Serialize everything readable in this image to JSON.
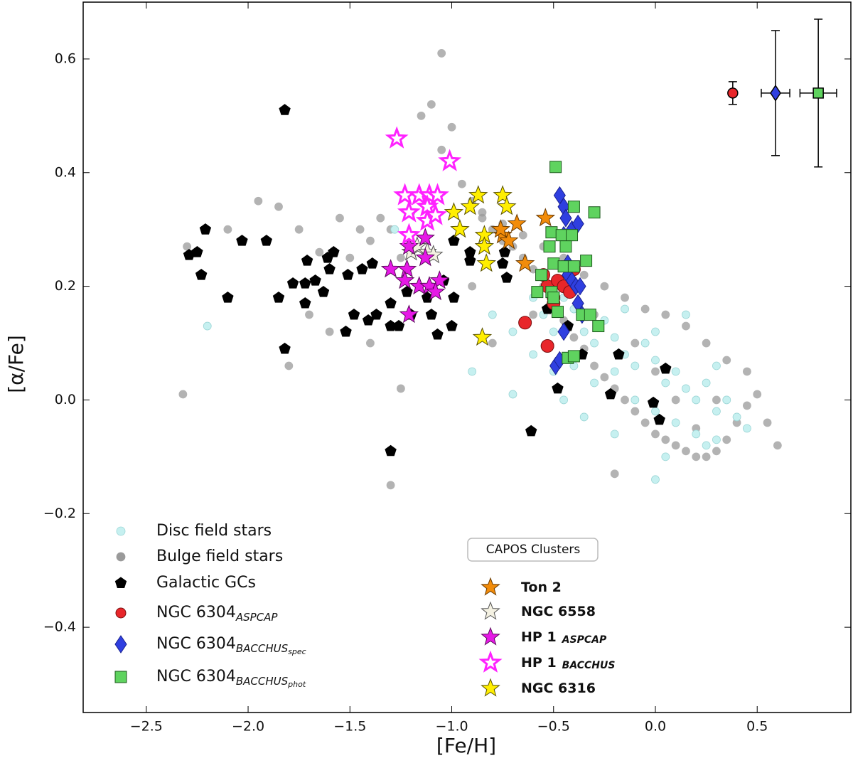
{
  "chart_data": {
    "type": "scatter",
    "xlabel": "[Fe/H]",
    "ylabel": "[α/Fe]",
    "xlim": [
      -2.81,
      0.96
    ],
    "ylim": [
      -0.55,
      0.7
    ],
    "xticks": [
      {
        "value": -2.5,
        "label": "−2.5"
      },
      {
        "value": -2,
        "label": "−2.0"
      },
      {
        "value": -1.5,
        "label": "−1.5"
      },
      {
        "value": -1,
        "label": "−1.0"
      },
      {
        "value": -0.5,
        "label": "−0.5"
      },
      {
        "value": 0,
        "label": "0.0"
      },
      0.5
    ],
    "yticks": [
      {
        "value": -0.4,
        "label": "−0.4"
      },
      {
        "value": -0.2,
        "label": "−0.2"
      },
      {
        "value": 0,
        "label": "0.0"
      },
      0.2,
      0.4,
      0.6
    ],
    "legend_title": "CAPOS Clusters",
    "series": [
      {
        "name": "Disc field stars",
        "marker": "circle",
        "color": "#c6f0f0",
        "edgecolor": "#9cd6d6",
        "legend": "left",
        "x": [
          -0.6,
          -0.55,
          -0.5,
          -0.45,
          -0.4,
          -0.35,
          -0.3,
          -0.25,
          -0.2,
          -0.15,
          -0.1,
          -0.05,
          0.0,
          0.05,
          0.1,
          0.15,
          0.2,
          0.25,
          0.3,
          0.35,
          0.4,
          0.45,
          -0.3,
          -0.2,
          -0.1,
          0.0,
          0.1,
          0.2,
          0.3,
          -0.4,
          -0.5,
          -0.6,
          -0.7,
          -0.8,
          -0.45,
          -0.35,
          0.05,
          0.0,
          -2.2,
          -1.28,
          -0.9,
          -0.7,
          0.15,
          0.0,
          -0.15,
          0.3,
          0.25,
          -0.2
        ],
        "y": [
          0.18,
          0.15,
          0.12,
          0.18,
          0.16,
          0.12,
          0.1,
          0.14,
          0.11,
          0.08,
          0.06,
          0.1,
          0.07,
          0.03,
          0.05,
          0.02,
          0.0,
          0.03,
          -0.02,
          0.0,
          -0.03,
          -0.05,
          0.03,
          0.05,
          0.0,
          -0.02,
          -0.04,
          -0.06,
          -0.07,
          0.06,
          0.05,
          0.08,
          0.12,
          0.15,
          0.0,
          -0.03,
          -0.1,
          -0.14,
          0.13,
          0.3,
          0.05,
          0.01,
          0.15,
          0.12,
          0.16,
          0.06,
          -0.08,
          -0.06
        ]
      },
      {
        "name": "Bulge field stars",
        "marker": "circle",
        "color": "#9a9a9a",
        "edgecolor": "#9a9a9a",
        "legend": "left",
        "x": [
          -2.3,
          -2.32,
          -2.1,
          -1.95,
          -1.85,
          -1.8,
          -1.75,
          -1.7,
          -1.65,
          -1.6,
          -1.55,
          -1.5,
          -1.45,
          -1.4,
          -1.35,
          -1.3,
          -1.25,
          -1.2,
          -1.15,
          -1.1,
          -1.05,
          -1.05,
          -1.0,
          -0.95,
          -0.9,
          -0.85,
          -0.8,
          -0.75,
          -0.7,
          -0.65,
          -0.6,
          -0.55,
          -0.5,
          -0.45,
          -0.4,
          -0.35,
          -0.3,
          -0.25,
          -0.2,
          -0.15,
          -0.1,
          -0.05,
          0.0,
          0.05,
          0.1,
          0.15,
          0.2,
          0.25,
          0.3,
          0.35,
          0.4,
          0.45,
          0.5,
          0.45,
          0.35,
          0.25,
          0.15,
          0.05,
          -0.05,
          -0.15,
          -0.25,
          -0.35,
          -0.45,
          -0.55,
          -0.65,
          -0.75,
          -0.85,
          -1.3,
          -1.25,
          -1.4,
          -0.8,
          -0.2,
          0.1,
          0.3,
          0.2,
          0.0,
          -0.1,
          -0.3,
          -0.6,
          -0.9,
          -1.1,
          0.6,
          0.55
        ],
        "y": [
          0.27,
          0.01,
          0.3,
          0.35,
          0.34,
          0.06,
          0.3,
          0.15,
          0.26,
          0.12,
          0.32,
          0.25,
          0.3,
          0.28,
          0.32,
          0.3,
          0.25,
          0.33,
          0.5,
          0.52,
          0.44,
          0.61,
          0.48,
          0.38,
          0.35,
          0.32,
          0.3,
          0.28,
          0.27,
          0.25,
          0.23,
          0.2,
          0.17,
          0.14,
          0.11,
          0.09,
          0.06,
          0.04,
          0.02,
          0.0,
          -0.02,
          -0.04,
          -0.06,
          -0.07,
          -0.08,
          -0.09,
          -0.1,
          -0.1,
          -0.09,
          -0.07,
          -0.04,
          -0.01,
          0.01,
          0.05,
          0.07,
          0.1,
          0.13,
          0.15,
          0.16,
          0.18,
          0.2,
          0.22,
          0.25,
          0.27,
          0.29,
          0.31,
          0.33,
          -0.15,
          0.02,
          0.1,
          0.1,
          -0.13,
          0.0,
          0.0,
          -0.05,
          0.05,
          0.1,
          0.15,
          0.15,
          0.2,
          0.2,
          -0.08,
          -0.04
        ]
      },
      {
        "name": "Galactic GCs",
        "marker": "pentagon",
        "color": "#000000",
        "edgecolor": "#000000",
        "legend": "left",
        "x": [
          -1.82,
          -2.21,
          -2.29,
          -2.25,
          -2.23,
          -2.03,
          -1.91,
          -2.1,
          -1.85,
          -1.82,
          -1.78,
          -1.71,
          -1.72,
          -1.67,
          -1.72,
          -1.63,
          -1.58,
          -1.6,
          -1.61,
          -1.51,
          -1.52,
          -1.48,
          -1.44,
          -1.39,
          -1.41,
          -1.37,
          -1.3,
          -1.3,
          -1.26,
          -1.3,
          -1.22,
          -1.2,
          -1.12,
          -1.07,
          -1.1,
          -1.04,
          -1.0,
          -0.99,
          -0.91,
          -0.91,
          -0.99,
          -0.75,
          -0.73,
          -0.74,
          -0.61,
          -0.53,
          -0.48,
          -0.43,
          -0.36,
          -0.22,
          -0.18,
          -0.01,
          0.02,
          0.05
        ],
        "y": [
          0.51,
          0.3,
          0.255,
          0.26,
          0.22,
          0.28,
          0.28,
          0.18,
          0.18,
          0.09,
          0.205,
          0.245,
          0.205,
          0.21,
          0.17,
          0.19,
          0.26,
          0.23,
          0.25,
          0.22,
          0.12,
          0.15,
          0.23,
          0.24,
          0.14,
          0.15,
          0.17,
          0.13,
          0.13,
          -0.09,
          0.19,
          0.15,
          0.18,
          0.115,
          0.15,
          0.21,
          0.13,
          0.18,
          0.245,
          0.26,
          0.28,
          0.24,
          0.215,
          0.26,
          -0.055,
          0.16,
          0.02,
          0.13,
          0.08,
          0.01,
          0.08,
          -0.005,
          -0.035,
          0.055
        ]
      },
      {
        "name": "NGC 6304",
        "subscript": "ASPCAP",
        "marker": "circle",
        "color": "#e8262a",
        "edgecolor": "#7a1010",
        "legend": "left",
        "x": [
          -0.55,
          -0.53,
          -0.5,
          -0.48,
          -0.45,
          -0.42,
          -0.4,
          -0.64,
          -0.53,
          -0.5
        ],
        "y": [
          0.22,
          0.2,
          0.18,
          0.21,
          0.2,
          0.19,
          0.23,
          0.136,
          0.095,
          0.17
        ]
      },
      {
        "name": "NGC 6304",
        "subscript": "BACCHUS",
        "subsubscript": "spec",
        "marker": "diamond",
        "color": "#2f3fe0",
        "edgecolor": "#1a2290",
        "legend": "left",
        "x": [
          -0.45,
          -0.47,
          -0.44,
          -0.41,
          -0.38,
          -0.45,
          -0.43,
          -0.41,
          -0.39,
          -0.37,
          -0.43,
          -0.38,
          -0.36,
          -0.49,
          -0.47,
          -0.45
        ],
        "y": [
          0.34,
          0.36,
          0.32,
          0.3,
          0.31,
          0.29,
          0.22,
          0.21,
          0.2,
          0.2,
          0.24,
          0.17,
          0.15,
          0.06,
          0.07,
          0.12
        ]
      },
      {
        "name": "NGC 6304",
        "subscript": "BACCHUS",
        "subsubscript": "phot",
        "marker": "square",
        "color": "#5fd35f",
        "edgecolor": "#1d5a1d",
        "legend": "left",
        "x": [
          -0.49,
          -0.4,
          -0.3,
          -0.51,
          -0.46,
          -0.41,
          -0.52,
          -0.44,
          -0.5,
          -0.45,
          -0.4,
          -0.34,
          -0.56,
          -0.58,
          -0.51,
          -0.5,
          -0.48,
          -0.36,
          -0.32,
          -0.28,
          -0.43,
          -0.4
        ],
        "y": [
          0.41,
          0.34,
          0.33,
          0.295,
          0.29,
          0.29,
          0.27,
          0.27,
          0.24,
          0.235,
          0.235,
          0.245,
          0.22,
          0.19,
          0.19,
          0.18,
          0.155,
          0.15,
          0.15,
          0.13,
          0.074,
          0.077
        ]
      },
      {
        "name": "Ton 2",
        "marker": "star",
        "color": "#f28c0a",
        "edgecolor": "#6a3a00",
        "legend": "right",
        "x": [
          -0.54,
          -0.68,
          -0.75,
          -0.72,
          -0.64,
          -0.76
        ],
        "y": [
          0.32,
          0.31,
          0.29,
          0.28,
          0.24,
          0.3
        ]
      },
      {
        "name": "NGC 6558",
        "marker": "star",
        "color": "#f4f1e2",
        "edgecolor": "#555555",
        "legend": "right",
        "x": [
          -1.2,
          -1.17,
          -1.12,
          -1.09
        ],
        "y": [
          0.26,
          0.27,
          0.26,
          0.255
        ]
      },
      {
        "name": "HP 1",
        "subscript": "ASPCAP",
        "marker": "star",
        "color": "#e619e6",
        "edgecolor": "#5a0a5a",
        "legend": "right",
        "x": [
          -1.3,
          -1.22,
          -1.23,
          -1.16,
          -1.11,
          -1.06,
          -1.08,
          -1.21,
          -1.13,
          -1.21,
          -1.13
        ],
        "y": [
          0.23,
          0.23,
          0.21,
          0.2,
          0.2,
          0.21,
          0.19,
          0.15,
          0.25,
          0.27,
          0.285
        ]
      },
      {
        "name": "HP 1",
        "subscript": "BACCHUS",
        "marker": "star",
        "color": "#ffffff",
        "edgecolor": "#ff22ff",
        "open": true,
        "legend": "right",
        "x": [
          -1.27,
          -1.01,
          -1.23,
          -1.16,
          -1.11,
          -1.07,
          -1.12,
          -1.12,
          -1.08,
          -1.21,
          -1.21
        ],
        "y": [
          0.46,
          0.42,
          0.36,
          0.36,
          0.36,
          0.36,
          0.34,
          0.315,
          0.325,
          0.29,
          0.33
        ]
      },
      {
        "name": "NGC 6316",
        "marker": "star",
        "color": "#ffee00",
        "edgecolor": "#5a5200",
        "legend": "right",
        "x": [
          -0.87,
          -0.75,
          -0.73,
          -0.91,
          -0.99,
          -0.96,
          -0.84,
          -0.84,
          -0.83,
          -0.85
        ],
        "y": [
          0.36,
          0.36,
          0.34,
          0.34,
          0.33,
          0.3,
          0.29,
          0.27,
          0.24,
          0.11
        ]
      }
    ],
    "error_bars": [
      {
        "x": 0.38,
        "y": 0.54,
        "xerr": 0.0,
        "yerr": 0.02,
        "marker": "circle",
        "color": "#e8262a"
      },
      {
        "x": 0.59,
        "y": 0.54,
        "xerr": 0.07,
        "yerr": 0.11,
        "marker": "diamond",
        "color": "#2f3fe0"
      },
      {
        "x": 0.8,
        "y": 0.54,
        "xerr": 0.09,
        "yerr": 0.13,
        "marker": "square",
        "color": "#5fd35f"
      }
    ]
  }
}
